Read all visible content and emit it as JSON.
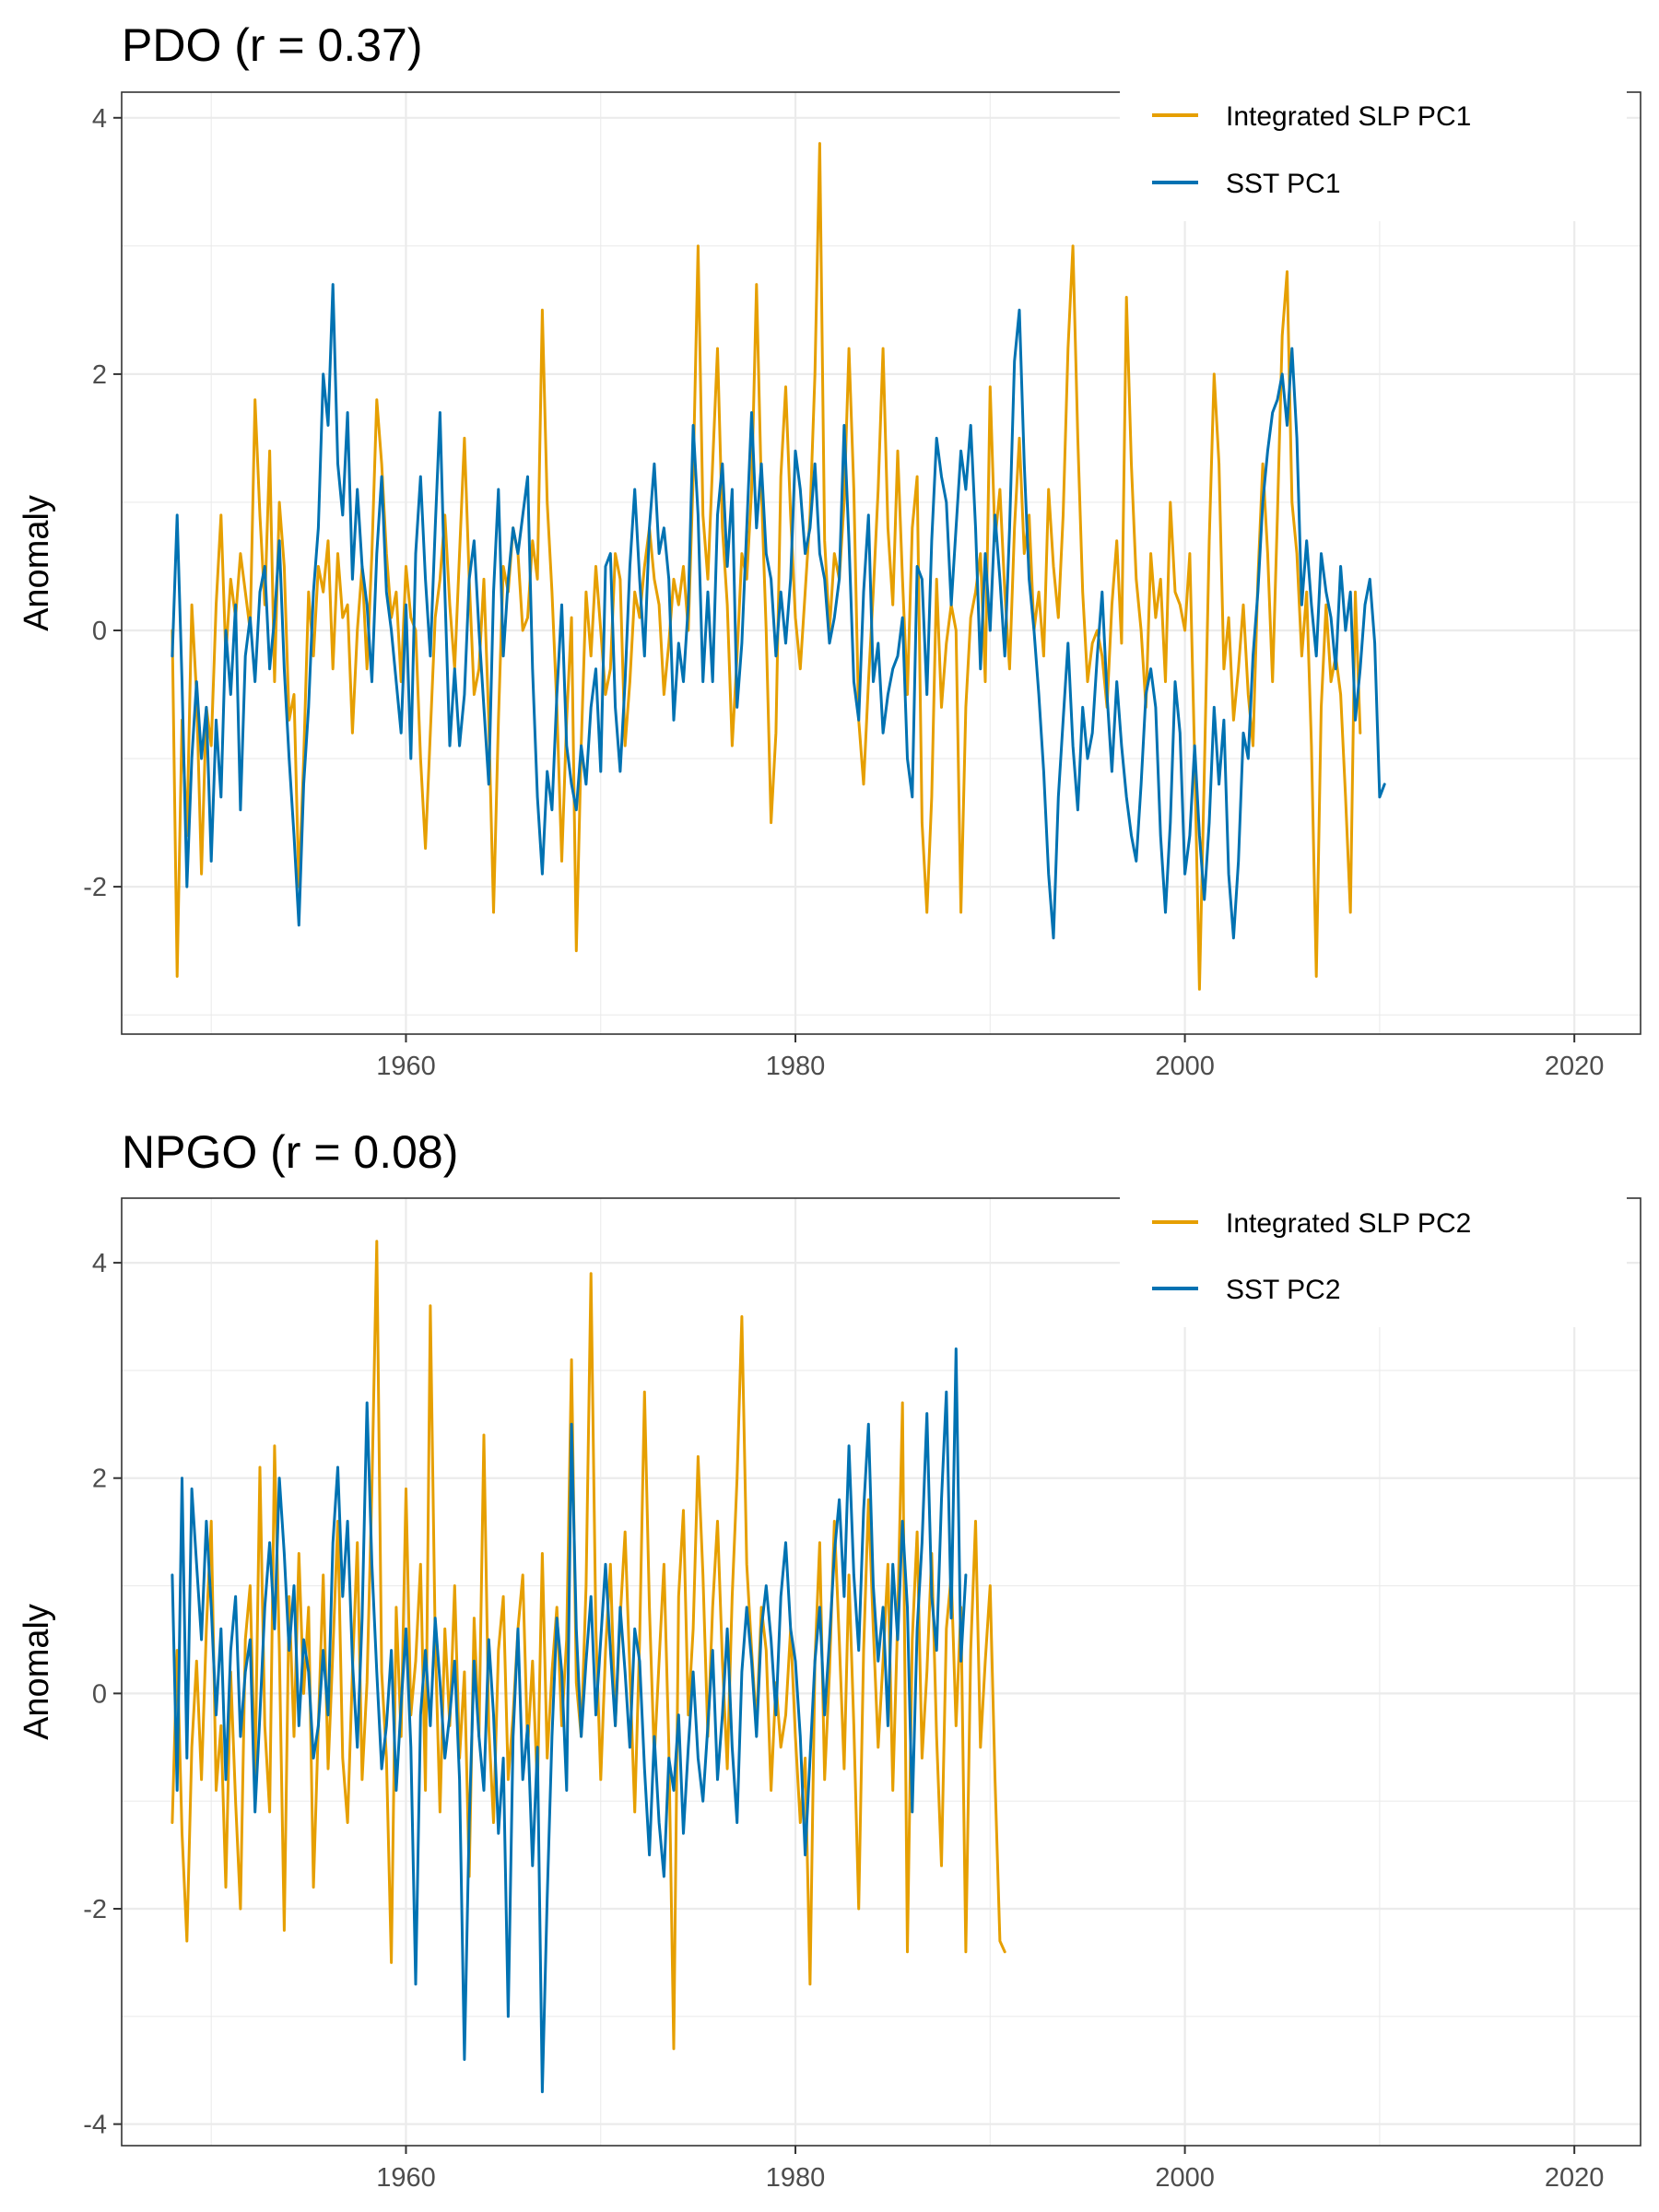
{
  "colors": {
    "slp": "#E69F00",
    "sst": "#0072B2",
    "grid": "#EBEBEB",
    "border": "#333333",
    "tick_text": "#4D4D4D"
  },
  "chart_data": [
    {
      "type": "line",
      "title": "PDO (r = 0.37)",
      "ylabel": "Anomaly",
      "xlabel": "",
      "xlim": [
        1945.4,
        2023.4
      ],
      "ylim": [
        -3.15,
        4.2
      ],
      "x_ticks": [
        1960,
        1980,
        2000,
        2020
      ],
      "x_tick_labels": [
        "1960",
        "1980",
        "2000",
        "2020"
      ],
      "y_ticks": [
        -2,
        0,
        2,
        4
      ],
      "y_tick_labels": [
        "-2",
        "0",
        "2",
        "4"
      ],
      "grid": true,
      "legend_position": "top-right",
      "series": [
        {
          "name": "Integrated SLP PC1",
          "color": "#E69F00",
          "x_start": 1948.0,
          "x_step": 0.25,
          "values": [
            0.0,
            -2.7,
            -0.7,
            -1.6,
            0.2,
            -0.5,
            -1.9,
            -0.6,
            -0.9,
            0.2,
            0.9,
            -0.2,
            0.4,
            0.1,
            0.6,
            0.3,
            0.0,
            1.8,
            0.9,
            0.2,
            1.4,
            -0.4,
            1.0,
            0.5,
            -0.7,
            -0.5,
            -2.0,
            -1.0,
            0.3,
            -0.2,
            0.5,
            0.3,
            0.7,
            -0.3,
            0.6,
            0.1,
            0.2,
            -0.8,
            0.0,
            0.5,
            -0.3,
            0.6,
            1.8,
            1.3,
            0.6,
            0.1,
            0.3,
            -0.4,
            0.5,
            0.1,
            0.0,
            -1.0,
            -1.7,
            -0.8,
            0.1,
            0.4,
            0.9,
            0.2,
            -0.3,
            0.6,
            1.5,
            0.4,
            -0.5,
            -0.3,
            0.4,
            -0.7,
            -2.2,
            -0.7,
            0.5,
            0.3,
            0.8,
            0.6,
            0.0,
            0.1,
            0.7,
            0.4,
            2.5,
            1.0,
            0.3,
            -0.6,
            -1.8,
            -0.7,
            0.1,
            -2.5,
            -0.9,
            0.3,
            -0.2,
            0.5,
            0.0,
            -0.5,
            -0.3,
            0.6,
            0.4,
            -0.9,
            -0.4,
            0.3,
            0.1,
            0.5,
            0.8,
            0.4,
            0.2,
            -0.5,
            -0.1,
            0.4,
            0.2,
            0.5,
            0.0,
            1.2,
            3.0,
            0.9,
            0.4,
            1.3,
            2.2,
            0.8,
            0.2,
            -0.9,
            -0.2,
            0.6,
            0.4,
            1.1,
            2.7,
            1.1,
            0.0,
            -1.5,
            -0.8,
            1.2,
            1.9,
            0.9,
            0.1,
            -0.3,
            0.3,
            0.9,
            2.0,
            3.8,
            0.7,
            0.0,
            0.6,
            0.4,
            1.0,
            2.2,
            1.1,
            -0.7,
            -1.2,
            -0.4,
            0.3,
            1.1,
            2.2,
            0.8,
            0.2,
            1.4,
            0.4,
            -0.5,
            0.8,
            1.2,
            -1.5,
            -2.2,
            -1.3,
            0.4,
            -0.6,
            -0.1,
            0.2,
            0.0,
            -2.2,
            -0.6,
            0.1,
            0.3,
            0.6,
            -0.4,
            1.9,
            0.7,
            1.1,
            0.3,
            -0.3,
            0.8,
            1.5,
            0.6,
            0.9,
            0.0,
            0.3,
            -0.2,
            1.1,
            0.5,
            0.1,
            0.9,
            2.2,
            3.0,
            1.5,
            0.3,
            -0.4,
            -0.1,
            0.0,
            -0.2,
            -0.6,
            0.2,
            0.7,
            -0.1,
            2.6,
            1.3,
            0.4,
            0.0,
            -0.6,
            0.6,
            0.1,
            0.4,
            -0.4,
            1.0,
            0.3,
            0.2,
            0.0,
            0.6,
            -1.0,
            -2.8,
            -1.1,
            0.7,
            2.0,
            1.3,
            -0.3,
            0.1,
            -0.7,
            -0.3,
            0.2,
            -0.5,
            -0.9,
            0.4,
            1.3,
            0.6,
            -0.4,
            0.9,
            2.3,
            2.8,
            1.0,
            0.6,
            -0.2,
            0.3,
            -0.9,
            -2.7,
            -0.6,
            0.2,
            -0.4,
            -0.2,
            -0.5,
            -1.3,
            -2.2,
            0.3,
            -0.8
          ]
        },
        {
          "name": "SST PC1",
          "color": "#0072B2",
          "x_start": 1948.0,
          "x_step": 0.25,
          "values": [
            -0.2,
            0.9,
            -0.4,
            -2.0,
            -1.0,
            -0.4,
            -1.0,
            -0.6,
            -1.8,
            -0.7,
            -1.3,
            0.0,
            -0.5,
            0.2,
            -1.4,
            -0.2,
            0.1,
            -0.4,
            0.3,
            0.5,
            -0.3,
            0.1,
            0.7,
            -0.3,
            -1.0,
            -1.6,
            -2.3,
            -1.2,
            -0.6,
            0.3,
            0.8,
            2.0,
            1.6,
            2.7,
            1.3,
            0.9,
            1.7,
            0.4,
            1.1,
            0.5,
            0.2,
            -0.4,
            0.6,
            1.2,
            0.3,
            0.0,
            -0.4,
            -0.8,
            0.2,
            -1.0,
            0.6,
            1.2,
            0.4,
            -0.2,
            0.8,
            1.7,
            0.3,
            -0.9,
            -0.3,
            -0.9,
            -0.5,
            0.4,
            0.7,
            0.0,
            -0.6,
            -1.2,
            0.3,
            1.1,
            -0.2,
            0.4,
            0.8,
            0.6,
            0.9,
            1.2,
            -0.3,
            -1.3,
            -1.9,
            -1.1,
            -1.4,
            -0.5,
            0.2,
            -0.9,
            -1.2,
            -1.4,
            -0.9,
            -1.2,
            -0.6,
            -0.3,
            -1.1,
            0.5,
            0.6,
            -0.6,
            -1.1,
            -0.4,
            0.5,
            1.1,
            0.4,
            -0.2,
            0.8,
            1.3,
            0.6,
            0.8,
            0.4,
            -0.7,
            -0.1,
            -0.4,
            0.2,
            1.6,
            0.9,
            -0.4,
            0.3,
            -0.4,
            0.9,
            1.3,
            0.5,
            1.1,
            -0.6,
            -0.1,
            0.8,
            1.7,
            0.8,
            1.3,
            0.6,
            0.4,
            -0.2,
            0.3,
            -0.1,
            0.4,
            1.4,
            1.1,
            0.6,
            0.8,
            1.3,
            0.6,
            0.4,
            -0.1,
            0.1,
            0.4,
            1.6,
            0.7,
            -0.4,
            -0.7,
            0.3,
            0.9,
            -0.4,
            -0.1,
            -0.8,
            -0.5,
            -0.3,
            -0.2,
            0.1,
            -1.0,
            -1.3,
            0.5,
            0.4,
            -0.5,
            0.7,
            1.5,
            1.2,
            1.0,
            0.2,
            0.8,
            1.4,
            1.1,
            1.6,
            0.8,
            -0.3,
            0.6,
            0.0,
            0.9,
            0.4,
            -0.2,
            0.8,
            2.1,
            2.5,
            1.3,
            0.4,
            0.0,
            -0.5,
            -1.1,
            -1.9,
            -2.4,
            -1.3,
            -0.7,
            -0.1,
            -0.9,
            -1.4,
            -0.6,
            -1.0,
            -0.8,
            -0.2,
            0.3,
            -0.5,
            -1.1,
            -0.4,
            -0.9,
            -1.3,
            -1.6,
            -1.8,
            -1.2,
            -0.5,
            -0.3,
            -0.6,
            -1.6,
            -2.2,
            -1.5,
            -0.4,
            -0.8,
            -1.9,
            -1.6,
            -0.9,
            -1.6,
            -2.1,
            -1.5,
            -0.6,
            -1.2,
            -0.7,
            -1.9,
            -2.4,
            -1.8,
            -0.8,
            -1.0,
            -0.2,
            0.3,
            1.0,
            1.4,
            1.7,
            1.8,
            2.0,
            1.6,
            2.2,
            1.5,
            0.2,
            0.7,
            0.2,
            -0.2,
            0.6,
            0.3,
            0.1,
            -0.3,
            0.5,
            0.0,
            0.3,
            -0.7,
            -0.3,
            0.2,
            0.4,
            -0.1,
            -1.3,
            -1.2
          ]
        }
      ]
    },
    {
      "type": "line",
      "title": "NPGO (r = 0.08)",
      "ylabel": "Anomaly",
      "xlabel": "",
      "xlim": [
        1945.4,
        2023.4
      ],
      "ylim": [
        -4.2,
        4.6
      ],
      "x_ticks": [
        1960,
        1980,
        2000,
        2020
      ],
      "x_tick_labels": [
        "1960",
        "1980",
        "2000",
        "2020"
      ],
      "y_ticks": [
        -4,
        -2,
        0,
        2,
        4
      ],
      "y_tick_labels": [
        "-4",
        "-2",
        "0",
        "2",
        "4"
      ],
      "grid": true,
      "legend_position": "top-right",
      "series": [
        {
          "name": "Integrated SLP PC2",
          "color": "#E69F00",
          "x_start": 1948.0,
          "x_step": 0.25,
          "values": [
            -1.2,
            0.4,
            -1.3,
            -2.3,
            -0.5,
            0.3,
            -0.8,
            0.6,
            1.6,
            -0.9,
            -0.3,
            -1.8,
            0.2,
            -1.0,
            -2.0,
            0.5,
            1.0,
            -0.8,
            2.1,
            -0.3,
            -1.1,
            2.3,
            0.4,
            -2.2,
            0.9,
            -0.4,
            1.3,
            0.0,
            0.8,
            -1.8,
            -0.3,
            1.1,
            -0.7,
            0.4,
            1.6,
            -0.6,
            -1.2,
            0.2,
            1.4,
            -0.8,
            0.1,
            1.9,
            4.2,
            0.2,
            -0.6,
            -2.5,
            0.8,
            -0.4,
            1.9,
            -0.2,
            0.3,
            1.2,
            -0.9,
            3.6,
            0.5,
            -1.1,
            0.6,
            -0.3,
            1.0,
            -0.6,
            0.2,
            -1.7,
            0.7,
            -0.4,
            2.4,
            -0.3,
            -1.2,
            0.4,
            0.9,
            -0.8,
            -0.2,
            0.6,
            1.1,
            -0.5,
            0.3,
            -0.9,
            1.3,
            -0.6,
            0.2,
            0.8,
            -0.3,
            0.5,
            3.1,
            0.1,
            -0.4,
            1.0,
            3.9,
            0.6,
            -0.8,
            0.4,
            1.2,
            -0.3,
            0.7,
            1.5,
            0.2,
            -1.1,
            0.5,
            2.8,
            0.8,
            -0.6,
            0.3,
            1.2,
            -0.5,
            -3.3,
            0.9,
            1.7,
            -0.2,
            0.6,
            2.2,
            1.1,
            -0.4,
            0.8,
            1.6,
            0.3,
            -0.7,
            0.9,
            2.0,
            3.5,
            1.2,
            0.4,
            -0.3,
            0.8,
            0.4,
            -0.9,
            0.1,
            -0.5,
            -0.2,
            0.6,
            -0.4,
            -1.2,
            -0.6,
            -2.7,
            0.3,
            1.4,
            -0.8,
            0.2,
            1.6,
            0.5,
            -0.7,
            1.1,
            -0.3,
            -2.0,
            0.4,
            1.8,
            0.6,
            -0.5,
            0.3,
            1.2,
            -0.9,
            0.7,
            2.7,
            -2.4,
            0.5,
            1.5,
            -0.6,
            0.2,
            1.3,
            -0.4,
            -1.6,
            0.6,
            1.1,
            -0.3,
            0.8,
            -2.4,
            0.4,
            1.6,
            -0.5,
            0.3,
            1.0,
            -0.8,
            -2.3,
            -2.4
          ]
        },
        {
          "name": "SST PC2",
          "color": "#0072B2",
          "x_start": 1948.0,
          "x_step": 0.25,
          "values": [
            1.1,
            -0.9,
            2.0,
            -0.6,
            1.9,
            1.2,
            0.5,
            1.6,
            0.8,
            -0.2,
            0.6,
            -0.8,
            0.4,
            0.9,
            -0.4,
            0.2,
            0.5,
            -1.1,
            -0.2,
            0.8,
            1.4,
            0.6,
            2.0,
            1.3,
            0.4,
            1.0,
            -0.3,
            0.5,
            0.2,
            -0.6,
            -0.3,
            0.4,
            -0.2,
            1.4,
            2.1,
            0.9,
            1.6,
            0.3,
            -0.5,
            0.7,
            2.7,
            1.2,
            0.2,
            -0.7,
            -0.3,
            0.4,
            -0.9,
            -0.1,
            0.6,
            -0.5,
            -2.7,
            -0.2,
            0.4,
            -0.3,
            0.7,
            0.1,
            -0.6,
            -0.2,
            0.3,
            -0.8,
            -3.4,
            -1.2,
            0.3,
            -0.4,
            -0.9,
            0.5,
            -0.2,
            -1.3,
            -0.6,
            -3.0,
            -0.4,
            0.6,
            -0.8,
            -0.3,
            -1.6,
            -0.5,
            -3.7,
            -1.9,
            -0.4,
            0.7,
            0.2,
            -0.9,
            2.5,
            0.6,
            -0.4,
            0.3,
            0.9,
            -0.2,
            0.5,
            1.2,
            0.4,
            -0.3,
            0.8,
            0.2,
            -0.5,
            0.6,
            0.3,
            -0.7,
            -1.5,
            -0.4,
            -1.2,
            -1.7,
            -0.6,
            -0.9,
            -0.2,
            -1.3,
            -0.5,
            0.2,
            -0.6,
            -1.0,
            -0.3,
            0.4,
            -0.8,
            -0.2,
            0.6,
            -0.5,
            -1.2,
            0.2,
            0.8,
            0.3,
            -0.4,
            0.6,
            1.0,
            0.5,
            -0.2,
            0.9,
            1.4,
            0.6,
            0.3,
            -0.4,
            -1.5,
            -0.6,
            0.3,
            0.8,
            -0.2,
            0.5,
            1.3,
            1.8,
            0.9,
            2.3,
            1.1,
            0.4,
            1.7,
            2.5,
            1.0,
            0.3,
            0.8,
            -0.3,
            1.2,
            0.5,
            1.6,
            0.8,
            -1.1,
            0.6,
            1.4,
            2.6,
            0.9,
            0.4,
            1.8,
            2.8,
            0.7,
            3.2,
            0.3,
            1.1
          ]
        }
      ]
    }
  ]
}
